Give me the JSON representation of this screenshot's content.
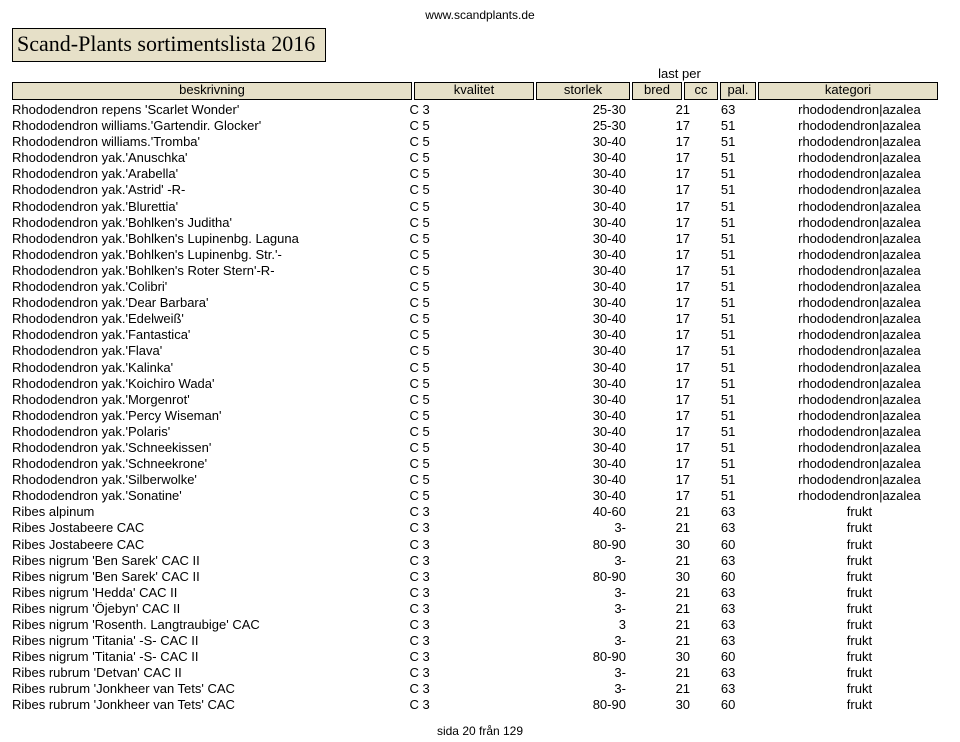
{
  "url": "www.scandplants.de",
  "title": "Scand-Plants sortimentslista 2016",
  "lastper_label": "last per",
  "headers": {
    "beskrivning": "beskrivning",
    "kvalitet": "kvalitet",
    "storlek": "storlek",
    "bred": "bred",
    "cc": "cc",
    "pal": "pal.",
    "kategori": "kategori"
  },
  "footer": "sida 20 från 129",
  "rows": [
    {
      "desc": "Rhododendron repens 'Scarlet Wonder'",
      "kval": "C 3",
      "stor": "25-30",
      "bred": "21",
      "cc": "63",
      "kat": "rhododendron|azalea"
    },
    {
      "desc": "Rhododendron williams.'Gartendir. Glocker'",
      "kval": "C 5",
      "stor": "25-30",
      "bred": "17",
      "cc": "51",
      "kat": "rhododendron|azalea"
    },
    {
      "desc": "Rhododendron williams.'Tromba'",
      "kval": "C 5",
      "stor": "30-40",
      "bred": "17",
      "cc": "51",
      "kat": "rhododendron|azalea"
    },
    {
      "desc": "Rhododendron yak.'Anuschka'",
      "kval": "C 5",
      "stor": "30-40",
      "bred": "17",
      "cc": "51",
      "kat": "rhododendron|azalea"
    },
    {
      "desc": "Rhododendron yak.'Arabella'",
      "kval": "C 5",
      "stor": "30-40",
      "bred": "17",
      "cc": "51",
      "kat": "rhododendron|azalea"
    },
    {
      "desc": "Rhododendron yak.'Astrid'  -R-",
      "kval": "C 5",
      "stor": "30-40",
      "bred": "17",
      "cc": "51",
      "kat": "rhododendron|azalea"
    },
    {
      "desc": "Rhododendron yak.'Blurettia'",
      "kval": "C 5",
      "stor": "30-40",
      "bred": "17",
      "cc": "51",
      "kat": "rhododendron|azalea"
    },
    {
      "desc": "Rhododendron yak.'Bohlken's Juditha'",
      "kval": "C 5",
      "stor": "30-40",
      "bred": "17",
      "cc": "51",
      "kat": "rhododendron|azalea"
    },
    {
      "desc": "Rhododendron yak.'Bohlken's Lupinenbg. Laguna",
      "kval": "C 5",
      "stor": "30-40",
      "bred": "17",
      "cc": "51",
      "kat": "rhododendron|azalea"
    },
    {
      "desc": "Rhododendron yak.'Bohlken's Lupinenbg. Str.'-",
      "kval": "C 5",
      "stor": "30-40",
      "bred": "17",
      "cc": "51",
      "kat": "rhododendron|azalea"
    },
    {
      "desc": "Rhododendron yak.'Bohlken's Roter Stern'-R-",
      "kval": "C 5",
      "stor": "30-40",
      "bred": "17",
      "cc": "51",
      "kat": "rhododendron|azalea"
    },
    {
      "desc": "Rhododendron yak.'Colibri'",
      "kval": "C 5",
      "stor": "30-40",
      "bred": "17",
      "cc": "51",
      "kat": "rhododendron|azalea"
    },
    {
      "desc": "Rhododendron yak.'Dear Barbara'",
      "kval": "C 5",
      "stor": "30-40",
      "bred": "17",
      "cc": "51",
      "kat": "rhododendron|azalea"
    },
    {
      "desc": "Rhododendron yak.'Edelweiß'",
      "kval": "C 5",
      "stor": "30-40",
      "bred": "17",
      "cc": "51",
      "kat": "rhododendron|azalea"
    },
    {
      "desc": "Rhododendron yak.'Fantastica'",
      "kval": "C 5",
      "stor": "30-40",
      "bred": "17",
      "cc": "51",
      "kat": "rhododendron|azalea"
    },
    {
      "desc": "Rhododendron yak.'Flava'",
      "kval": "C 5",
      "stor": "30-40",
      "bred": "17",
      "cc": "51",
      "kat": "rhododendron|azalea"
    },
    {
      "desc": "Rhododendron yak.'Kalinka'",
      "kval": "C 5",
      "stor": "30-40",
      "bred": "17",
      "cc": "51",
      "kat": "rhododendron|azalea"
    },
    {
      "desc": "Rhododendron yak.'Koichiro Wada'",
      "kval": "C 5",
      "stor": "30-40",
      "bred": "17",
      "cc": "51",
      "kat": "rhododendron|azalea"
    },
    {
      "desc": "Rhododendron yak.'Morgenrot'",
      "kval": "C 5",
      "stor": "30-40",
      "bred": "17",
      "cc": "51",
      "kat": "rhododendron|azalea"
    },
    {
      "desc": "Rhododendron yak.'Percy Wiseman'",
      "kval": "C 5",
      "stor": "30-40",
      "bred": "17",
      "cc": "51",
      "kat": "rhododendron|azalea"
    },
    {
      "desc": "Rhododendron yak.'Polaris'",
      "kval": "C 5",
      "stor": "30-40",
      "bred": "17",
      "cc": "51",
      "kat": "rhododendron|azalea"
    },
    {
      "desc": "Rhododendron yak.'Schneekissen'",
      "kval": "C 5",
      "stor": "30-40",
      "bred": "17",
      "cc": "51",
      "kat": "rhododendron|azalea"
    },
    {
      "desc": "Rhododendron yak.'Schneekrone'",
      "kval": "C 5",
      "stor": "30-40",
      "bred": "17",
      "cc": "51",
      "kat": "rhododendron|azalea"
    },
    {
      "desc": "Rhododendron yak.'Silberwolke'",
      "kval": "C 5",
      "stor": "30-40",
      "bred": "17",
      "cc": "51",
      "kat": "rhododendron|azalea"
    },
    {
      "desc": "Rhododendron yak.'Sonatine'",
      "kval": "C 5",
      "stor": "30-40",
      "bred": "17",
      "cc": "51",
      "kat": "rhododendron|azalea"
    },
    {
      "desc": "Ribes alpinum",
      "kval": "C 3",
      "stor": "40-60",
      "bred": "21",
      "cc": "63",
      "kat": "frukt"
    },
    {
      "desc": "Ribes Jostabeere                     CAC",
      "kval": "C 3",
      "stor": "3-",
      "bred": "21",
      "cc": "63",
      "kat": "frukt"
    },
    {
      "desc": "Ribes Jostabeere                     CAC",
      "kval": "C 3",
      "stor": "80-90",
      "bred": "30",
      "cc": "60",
      "kat": "frukt"
    },
    {
      "desc": "Ribes nigrum 'Ben Sarek'           CAC II",
      "kval": "C 3",
      "stor": "3-",
      "bred": "21",
      "cc": "63",
      "kat": "frukt"
    },
    {
      "desc": "Ribes nigrum 'Ben Sarek'           CAC II",
      "kval": "C 3",
      "stor": "80-90",
      "bred": "30",
      "cc": "60",
      "kat": "frukt"
    },
    {
      "desc": "Ribes nigrum 'Hedda'               CAC II",
      "kval": "C 3",
      "stor": "3-",
      "bred": "21",
      "cc": "63",
      "kat": "frukt"
    },
    {
      "desc": "Ribes nigrum 'Öjebyn'              CAC II",
      "kval": "C 3",
      "stor": "3-",
      "bred": "21",
      "cc": "63",
      "kat": "frukt"
    },
    {
      "desc": "Ribes nigrum 'Rosenth. Langtraubige'   CAC",
      "kval": "C 3",
      "stor": "3",
      "bred": "21",
      "cc": "63",
      "kat": "frukt"
    },
    {
      "desc": "Ribes nigrum 'Titania'  -S-          CAC II",
      "kval": "C 3",
      "stor": "3-",
      "bred": "21",
      "cc": "63",
      "kat": "frukt"
    },
    {
      "desc": "Ribes nigrum 'Titania'  -S-          CAC II",
      "kval": "C 3",
      "stor": "80-90",
      "bred": "30",
      "cc": "60",
      "kat": "frukt"
    },
    {
      "desc": "Ribes rubrum 'Detvan'          CAC II",
      "kval": "C 3",
      "stor": "3-",
      "bred": "21",
      "cc": "63",
      "kat": "frukt"
    },
    {
      "desc": "Ribes rubrum 'Jonkheer van Tets'       CAC",
      "kval": "C 3",
      "stor": "3-",
      "bred": "21",
      "cc": "63",
      "kat": "frukt"
    },
    {
      "desc": "Ribes rubrum 'Jonkheer van Tets'       CAC",
      "kval": "C 3",
      "stor": "80-90",
      "bred": "30",
      "cc": "60",
      "kat": "frukt"
    }
  ]
}
